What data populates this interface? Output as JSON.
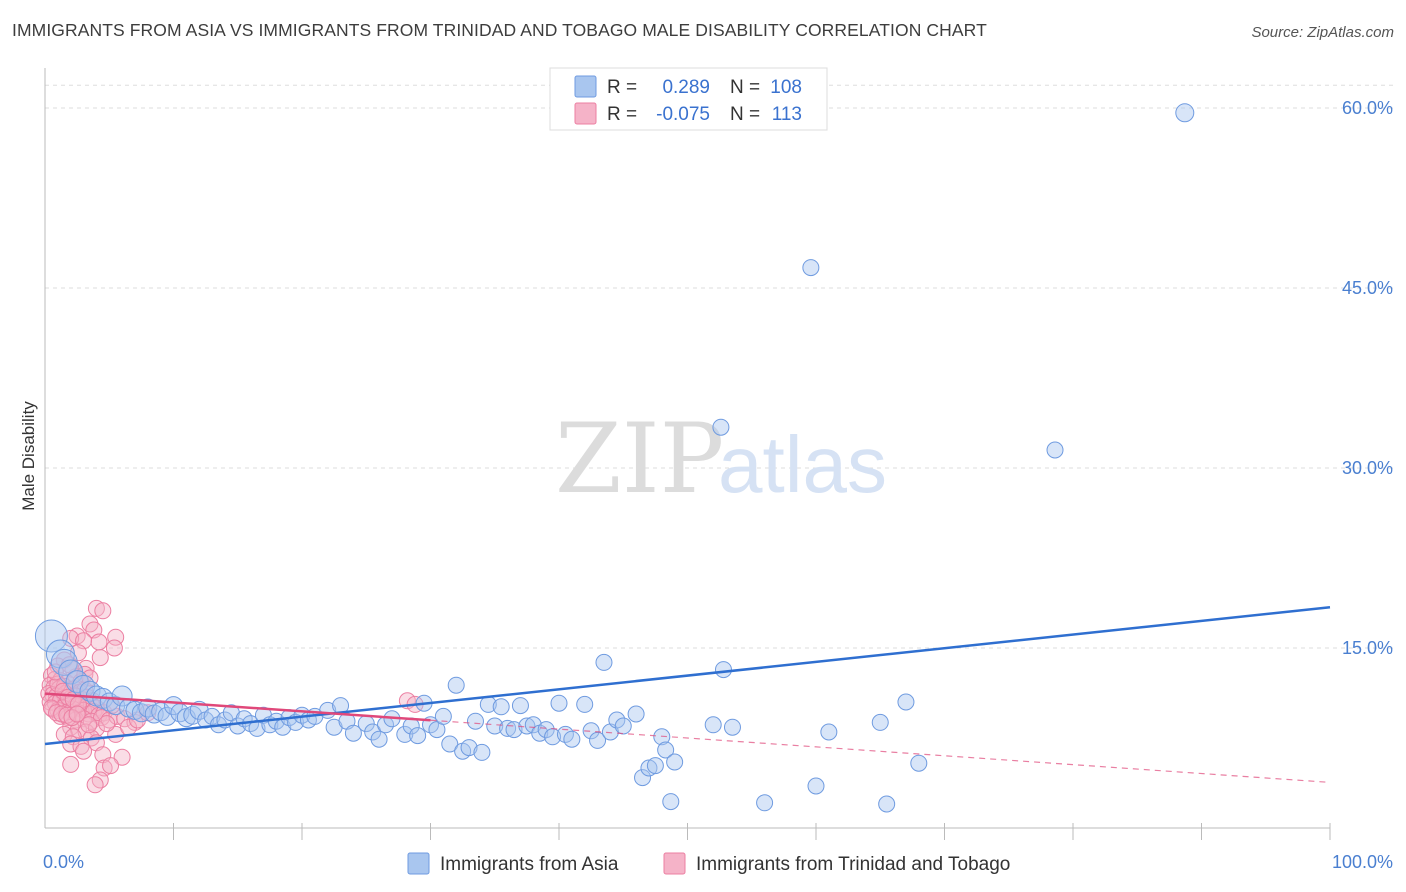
{
  "title": "IMMIGRANTS FROM ASIA VS IMMIGRANTS FROM TRINIDAD AND TOBAGO MALE DISABILITY CORRELATION CHART",
  "source": "Source: ZipAtlas.com",
  "watermark": {
    "zip": "ZIP",
    "atlas": "atlas"
  },
  "colors": {
    "blue_fill": "#a9c6ef",
    "blue_stroke": "#6f9be0",
    "blue_line": "#2f6fd0",
    "pink_fill": "#f5b3c8",
    "pink_stroke": "#ec7fa2",
    "pink_line": "#e0487a",
    "tick_text": "#4a7fd0",
    "grid": "#dddddd"
  },
  "legend_box": {
    "rows": [
      {
        "r_label": "R =",
        "r_value": "0.289",
        "n_label": "N =",
        "n_value": "108"
      },
      {
        "r_label": "R =",
        "r_value": "-0.075",
        "n_label": "N =",
        "n_value": "113"
      }
    ]
  },
  "chart_data": {
    "type": "scatter",
    "title": "IMMIGRANTS FROM ASIA VS IMMIGRANTS FROM TRINIDAD AND TOBAGO MALE DISABILITY CORRELATION CHART",
    "xlabel": "",
    "ylabel": "Male Disability",
    "xlim": [
      0,
      100
    ],
    "ylim": [
      0,
      62.5
    ],
    "x_tick_labels": [
      "0.0%",
      "100.0%"
    ],
    "y_ticks": [
      15,
      30,
      45,
      60
    ],
    "y_tick_labels": [
      "15.0%",
      "30.0%",
      "45.0%",
      "60.0%"
    ],
    "grid": true,
    "legend_position": "top-center",
    "series": [
      {
        "name": "Immigrants from Asia",
        "color": "#a9c6ef",
        "trend": {
          "x": [
            0,
            100
          ],
          "y": [
            7.0,
            18.4
          ],
          "style": "solid"
        },
        "points": [
          [
            88.7,
            59.6
          ],
          [
            59.6,
            46.7
          ],
          [
            52.6,
            33.4
          ],
          [
            78.6,
            31.5
          ],
          [
            0.5,
            16.0
          ],
          [
            1.2,
            14.5
          ],
          [
            1.5,
            13.8
          ],
          [
            2.0,
            13.0
          ],
          [
            2.5,
            12.2
          ],
          [
            3.0,
            11.8
          ],
          [
            3.5,
            11.4
          ],
          [
            4.0,
            11.0
          ],
          [
            4.5,
            10.8
          ],
          [
            5.0,
            10.5
          ],
          [
            5.5,
            10.2
          ],
          [
            6.0,
            11.0
          ],
          [
            6.5,
            10.0
          ],
          [
            7.0,
            9.8
          ],
          [
            7.5,
            9.6
          ],
          [
            8.0,
            10.0
          ],
          [
            8.5,
            9.5
          ],
          [
            9.0,
            9.7
          ],
          [
            9.5,
            9.3
          ],
          [
            10.0,
            10.2
          ],
          [
            10.5,
            9.6
          ],
          [
            11.0,
            9.2
          ],
          [
            11.5,
            9.4
          ],
          [
            12.0,
            9.8
          ],
          [
            12.5,
            9.0
          ],
          [
            13.0,
            9.3
          ],
          [
            13.5,
            8.6
          ],
          [
            14.0,
            9.0
          ],
          [
            14.5,
            9.6
          ],
          [
            15.0,
            8.5
          ],
          [
            15.5,
            9.1
          ],
          [
            16.0,
            8.7
          ],
          [
            16.5,
            8.3
          ],
          [
            17.0,
            9.4
          ],
          [
            17.5,
            8.6
          ],
          [
            18.0,
            8.9
          ],
          [
            18.5,
            8.4
          ],
          [
            19.0,
            9.2
          ],
          [
            19.5,
            8.8
          ],
          [
            20.0,
            9.4
          ],
          [
            20.5,
            9.0
          ],
          [
            21.0,
            9.3
          ],
          [
            22.0,
            9.8
          ],
          [
            22.5,
            8.4
          ],
          [
            23.0,
            10.2
          ],
          [
            23.5,
            8.9
          ],
          [
            24.0,
            7.9
          ],
          [
            25.0,
            8.7
          ],
          [
            25.5,
            8.0
          ],
          [
            26.0,
            7.4
          ],
          [
            26.5,
            8.6
          ],
          [
            27.0,
            9.1
          ],
          [
            28.0,
            7.8
          ],
          [
            28.5,
            8.5
          ],
          [
            29.0,
            7.7
          ],
          [
            29.5,
            10.4
          ],
          [
            30.0,
            8.6
          ],
          [
            30.5,
            8.2
          ],
          [
            31.0,
            9.3
          ],
          [
            31.5,
            7.0
          ],
          [
            32.0,
            11.9
          ],
          [
            32.5,
            6.4
          ],
          [
            33.0,
            6.7
          ],
          [
            33.5,
            8.9
          ],
          [
            34.0,
            6.3
          ],
          [
            34.5,
            10.3
          ],
          [
            35.0,
            8.5
          ],
          [
            35.5,
            10.1
          ],
          [
            36.0,
            8.3
          ],
          [
            36.5,
            8.2
          ],
          [
            37.0,
            10.2
          ],
          [
            37.5,
            8.5
          ],
          [
            38.0,
            8.6
          ],
          [
            38.5,
            7.9
          ],
          [
            39.0,
            8.2
          ],
          [
            39.5,
            7.6
          ],
          [
            40.0,
            10.4
          ],
          [
            40.5,
            7.8
          ],
          [
            41.0,
            7.4
          ],
          [
            42.0,
            10.3
          ],
          [
            42.5,
            8.1
          ],
          [
            43.0,
            7.3
          ],
          [
            43.5,
            13.8
          ],
          [
            44.0,
            8.0
          ],
          [
            44.5,
            9.0
          ],
          [
            45.0,
            8.5
          ],
          [
            46.0,
            9.5
          ],
          [
            46.5,
            4.2
          ],
          [
            47.0,
            5.0
          ],
          [
            47.5,
            5.2
          ],
          [
            48.0,
            7.6
          ],
          [
            48.3,
            6.5
          ],
          [
            48.7,
            2.2
          ],
          [
            49.0,
            5.5
          ],
          [
            52.0,
            8.6
          ],
          [
            52.8,
            13.2
          ],
          [
            53.5,
            8.4
          ],
          [
            56.0,
            2.1
          ],
          [
            60.0,
            3.5
          ],
          [
            61.0,
            8.0
          ],
          [
            65.0,
            8.8
          ],
          [
            65.5,
            2.0
          ],
          [
            67.0,
            10.5
          ],
          [
            68.0,
            5.4
          ]
        ],
        "point_radius": [
          9,
          8,
          8,
          8,
          16,
          14,
          13,
          12,
          11,
          11,
          10,
          10,
          10,
          9,
          9,
          10,
          9,
          9,
          9,
          9,
          9,
          9,
          9,
          9,
          9,
          9,
          9,
          9,
          8,
          8,
          8,
          8,
          8,
          8,
          8,
          8,
          8,
          8,
          8,
          8,
          8,
          8,
          8,
          8,
          8,
          8,
          8,
          8,
          8,
          8,
          8,
          8,
          8,
          8,
          8,
          8,
          8,
          8,
          8,
          8,
          8,
          8,
          8,
          8,
          8,
          8,
          8,
          8,
          8,
          8,
          8,
          8,
          8,
          8,
          8,
          8,
          8,
          8,
          8,
          8,
          8,
          8,
          8,
          8,
          8,
          8,
          8,
          8,
          8,
          8,
          8,
          8,
          8,
          8,
          8,
          8,
          8,
          8,
          8,
          8,
          8,
          8,
          8,
          8,
          8,
          8,
          8,
          8
        ]
      },
      {
        "name": "Immigrants from Trinidad and Tobago",
        "color": "#f5b3c8",
        "trend": {
          "x": [
            0,
            100
          ],
          "y": [
            11.2,
            3.8
          ],
          "style": "solid-then-dashed",
          "solid_until": 30
        },
        "points": [
          [
            4.0,
            18.3
          ],
          [
            4.5,
            18.1
          ],
          [
            3.5,
            17.0
          ],
          [
            3.8,
            16.5
          ],
          [
            2.5,
            16.0
          ],
          [
            2.0,
            15.8
          ],
          [
            4.2,
            15.5
          ],
          [
            5.5,
            15.9
          ],
          [
            3.0,
            15.6
          ],
          [
            4.3,
            14.2
          ],
          [
            1.5,
            14.0
          ],
          [
            1.0,
            13.5
          ],
          [
            2.2,
            13.2
          ],
          [
            3.2,
            13.3
          ],
          [
            0.5,
            12.7
          ],
          [
            0.8,
            12.4
          ],
          [
            1.2,
            12.3
          ],
          [
            1.7,
            12.1
          ],
          [
            2.4,
            12.6
          ],
          [
            2.8,
            12.2
          ],
          [
            0.4,
            11.9
          ],
          [
            0.7,
            11.7
          ],
          [
            1.1,
            11.6
          ],
          [
            1.5,
            11.8
          ],
          [
            1.9,
            11.5
          ],
          [
            2.3,
            11.6
          ],
          [
            2.7,
            11.3
          ],
          [
            3.1,
            11.5
          ],
          [
            0.3,
            11.2
          ],
          [
            0.6,
            11.1
          ],
          [
            0.9,
            11.0
          ],
          [
            1.3,
            10.9
          ],
          [
            1.6,
            11.2
          ],
          [
            2.0,
            10.8
          ],
          [
            2.4,
            11.0
          ],
          [
            2.9,
            10.7
          ],
          [
            3.3,
            10.9
          ],
          [
            3.7,
            10.6
          ],
          [
            0.4,
            10.5
          ],
          [
            0.8,
            10.4
          ],
          [
            1.2,
            10.6
          ],
          [
            1.6,
            10.3
          ],
          [
            2.0,
            10.5
          ],
          [
            2.4,
            10.2
          ],
          [
            2.8,
            10.4
          ],
          [
            3.2,
            10.1
          ],
          [
            3.6,
            10.3
          ],
          [
            4.0,
            10.0
          ],
          [
            0.6,
            9.9
          ],
          [
            1.0,
            9.8
          ],
          [
            1.4,
            10.0
          ],
          [
            1.8,
            9.7
          ],
          [
            2.2,
            9.9
          ],
          [
            2.6,
            9.6
          ],
          [
            3.0,
            9.8
          ],
          [
            3.4,
            9.5
          ],
          [
            3.8,
            9.7
          ],
          [
            4.2,
            9.4
          ],
          [
            4.6,
            9.6
          ],
          [
            1.2,
            9.3
          ],
          [
            1.8,
            9.2
          ],
          [
            2.4,
            9.0
          ],
          [
            3.0,
            9.1
          ],
          [
            3.6,
            8.9
          ],
          [
            4.4,
            9.2
          ],
          [
            5.0,
            9.0
          ],
          [
            5.6,
            9.3
          ],
          [
            6.2,
            9.1
          ],
          [
            7.0,
            8.8
          ],
          [
            2.0,
            8.4
          ],
          [
            2.6,
            8.2
          ],
          [
            3.2,
            8.0
          ],
          [
            4.0,
            8.3
          ],
          [
            1.5,
            7.8
          ],
          [
            2.2,
            7.6
          ],
          [
            3.6,
            7.5
          ],
          [
            5.5,
            7.8
          ],
          [
            2.0,
            7.0
          ],
          [
            2.8,
            6.8
          ],
          [
            4.0,
            7.1
          ],
          [
            3.0,
            6.4
          ],
          [
            4.5,
            6.1
          ],
          [
            6.0,
            5.9
          ],
          [
            2.0,
            5.3
          ],
          [
            4.6,
            5.0
          ],
          [
            5.1,
            5.2
          ],
          [
            4.3,
            4.0
          ],
          [
            3.9,
            3.6
          ],
          [
            1.0,
            12.0
          ],
          [
            1.4,
            11.4
          ],
          [
            1.8,
            10.9
          ],
          [
            2.2,
            10.7
          ],
          [
            2.6,
            10.3
          ],
          [
            0.5,
            10.0
          ],
          [
            0.9,
            9.6
          ],
          [
            1.3,
            9.5
          ],
          [
            1.7,
            9.4
          ],
          [
            2.1,
            9.2
          ],
          [
            2.5,
            9.5
          ],
          [
            3.4,
            8.6
          ],
          [
            4.8,
            8.7
          ],
          [
            5.2,
            10.2
          ],
          [
            6.5,
            8.4
          ],
          [
            7.2,
            9.0
          ],
          [
            8.0,
            9.6
          ],
          [
            28.2,
            10.6
          ],
          [
            28.8,
            10.3
          ],
          [
            3.1,
            12.8
          ],
          [
            3.5,
            12.5
          ],
          [
            0.8,
            13.0
          ],
          [
            1.9,
            13.6
          ],
          [
            2.6,
            14.6
          ],
          [
            5.4,
            15.0
          ]
        ],
        "point_radius": 8
      }
    ]
  },
  "bottom_legend": [
    {
      "label": "Immigrants from Asia"
    },
    {
      "label": "Immigrants from Trinidad and Tobago"
    }
  ]
}
